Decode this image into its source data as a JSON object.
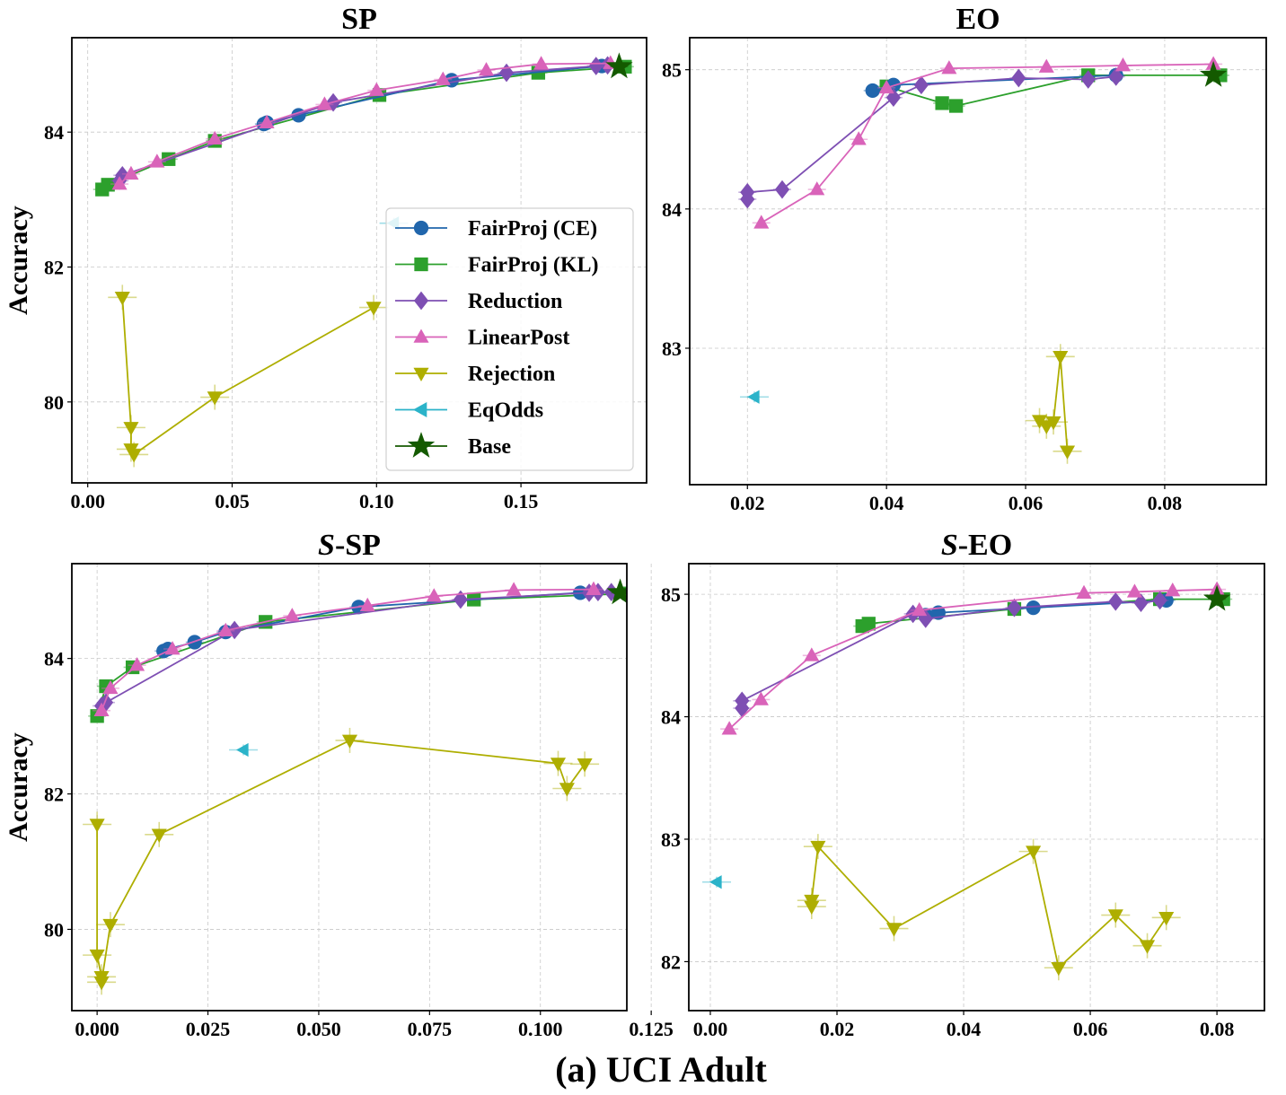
{
  "caption": "(a) UCI Adult",
  "legend": {
    "placement": "inside SP panel, lower-right",
    "entries": [
      {
        "key": "ce",
        "label": "FairProj (CE)"
      },
      {
        "key": "kl",
        "label": "FairProj (KL)"
      },
      {
        "key": "red",
        "label": "Reduction"
      },
      {
        "key": "lp",
        "label": "LinearPost"
      },
      {
        "key": "rej",
        "label": "Rejection"
      },
      {
        "key": "eq",
        "label": "EqOdds"
      },
      {
        "key": "base",
        "label": "Base"
      }
    ]
  },
  "styles": {
    "ce": {
      "color": "#2166ac",
      "marker": "circle"
    },
    "kl": {
      "color": "#2ca02c",
      "marker": "square"
    },
    "red": {
      "color": "#7e4fb3",
      "marker": "diamond"
    },
    "lp": {
      "color": "#d963b9",
      "marker": "triangle-up"
    },
    "rej": {
      "color": "#aeae00",
      "marker": "triangle-down"
    },
    "eq": {
      "color": "#2bb3c9",
      "marker": "triangle-left"
    },
    "base": {
      "color": "#145a00",
      "marker": "star"
    }
  },
  "chart_data": [
    {
      "type": "line",
      "title": "SP",
      "title_italic_prefix": "",
      "xlabel": "",
      "ylabel": "Accuracy",
      "xlim": [
        -0.0055,
        0.1935
      ],
      "ylim": [
        78.8,
        85.4
      ],
      "xticks": [
        0.0,
        0.05,
        0.1,
        0.15
      ],
      "xtick_labels": [
        "0.00",
        "0.05",
        "0.10",
        "0.15"
      ],
      "yticks": [
        80,
        82,
        84
      ],
      "ytick_labels": [
        "80",
        "82",
        "84"
      ],
      "grid": true,
      "series": [
        {
          "key": "ce",
          "x": [
            0.061,
            0.062,
            0.073,
            0.126,
            0.178
          ],
          "y": [
            84.12,
            84.14,
            84.25,
            84.77,
            84.98
          ]
        },
        {
          "key": "kl",
          "x": [
            0.005,
            0.007,
            0.028,
            0.044,
            0.101,
            0.156,
            0.186
          ],
          "y": [
            83.15,
            83.22,
            83.6,
            83.87,
            84.55,
            84.88,
            84.97
          ]
        },
        {
          "key": "red",
          "x": [
            0.011,
            0.012,
            0.085,
            0.145,
            0.176,
            0.18
          ],
          "y": [
            83.28,
            83.36,
            84.44,
            84.88,
            84.98,
            84.99
          ]
        },
        {
          "key": "lp",
          "x": [
            0.011,
            0.015,
            0.024,
            0.044,
            0.062,
            0.082,
            0.1,
            0.123,
            0.138,
            0.157,
            0.181
          ],
          "y": [
            83.23,
            83.38,
            83.56,
            83.9,
            84.14,
            84.41,
            84.62,
            84.78,
            84.92,
            85.01,
            85.02
          ]
        },
        {
          "key": "rej",
          "x": [
            0.012,
            0.015,
            0.015,
            0.016,
            0.044,
            0.099
          ],
          "y": [
            81.55,
            79.62,
            79.3,
            79.22,
            80.07,
            81.4
          ]
        },
        {
          "key": "eq",
          "x": [
            0.106
          ],
          "y": [
            82.65
          ],
          "line": false
        },
        {
          "key": "base",
          "x": [
            0.184
          ],
          "y": [
            84.97
          ],
          "line": false
        }
      ]
    },
    {
      "type": "line",
      "title": "EO",
      "title_italic_prefix": "",
      "xlabel": "",
      "ylabel": "",
      "xlim": [
        0.0117,
        0.0946
      ],
      "ylim": [
        82.02,
        85.23
      ],
      "xticks": [
        0.02,
        0.04,
        0.06,
        0.08
      ],
      "xtick_labels": [
        "0.02",
        "0.04",
        "0.06",
        "0.08"
      ],
      "yticks": [
        83,
        84,
        85
      ],
      "ytick_labels": [
        "83",
        "84",
        "85"
      ],
      "grid": true,
      "series": [
        {
          "key": "ce",
          "x": [
            0.038,
            0.041,
            0.073
          ],
          "y": [
            84.85,
            84.89,
            84.96
          ]
        },
        {
          "key": "kl",
          "x": [
            0.04,
            0.048,
            0.05,
            0.069,
            0.088
          ],
          "y": [
            84.88,
            84.76,
            84.74,
            84.96,
            84.96
          ]
        },
        {
          "key": "red",
          "x": [
            0.02,
            0.02,
            0.025,
            0.041,
            0.045,
            0.059,
            0.069,
            0.073
          ],
          "y": [
            84.07,
            84.12,
            84.14,
            84.8,
            84.89,
            84.94,
            84.93,
            84.95
          ]
        },
        {
          "key": "lp",
          "x": [
            0.022,
            0.03,
            0.036,
            0.04,
            0.049,
            0.063,
            0.074,
            0.087
          ],
          "y": [
            83.9,
            84.14,
            84.5,
            84.87,
            85.01,
            85.02,
            85.03,
            85.04
          ]
        },
        {
          "key": "rej",
          "x": [
            0.062,
            0.063,
            0.064,
            0.065,
            0.066
          ],
          "y": [
            82.48,
            82.44,
            82.47,
            82.94,
            82.26
          ]
        },
        {
          "key": "eq",
          "x": [
            0.021
          ],
          "y": [
            82.65
          ],
          "line": false
        },
        {
          "key": "base",
          "x": [
            0.087
          ],
          "y": [
            84.96
          ],
          "line": false
        }
      ]
    },
    {
      "type": "line",
      "title": "-SP",
      "title_italic_prefix": "S",
      "xlabel": "",
      "ylabel": "Accuracy",
      "xlim": [
        -0.0057,
        0.1195
      ],
      "ylim": [
        78.8,
        85.4
      ],
      "xticks": [
        0.0,
        0.025,
        0.05,
        0.075,
        0.1,
        0.125
      ],
      "xtick_labels": [
        "0.000",
        "0.025",
        "0.050",
        "0.075",
        "0.100",
        "0.125"
      ],
      "yticks": [
        80,
        82,
        84
      ],
      "ytick_labels": [
        "80",
        "82",
        "84"
      ],
      "grid": true,
      "series": [
        {
          "key": "ce",
          "x": [
            0.015,
            0.016,
            0.022,
            0.029,
            0.059,
            0.109
          ],
          "y": [
            84.11,
            84.14,
            84.24,
            84.39,
            84.76,
            84.97
          ]
        },
        {
          "key": "kl",
          "x": [
            0.0,
            0.002,
            0.008,
            0.038,
            0.085,
            0.12
          ],
          "y": [
            83.15,
            83.59,
            83.87,
            84.54,
            84.87,
            84.96
          ]
        },
        {
          "key": "red",
          "x": [
            0.001,
            0.002,
            0.031,
            0.082,
            0.111,
            0.113,
            0.116
          ],
          "y": [
            83.3,
            83.35,
            84.42,
            84.87,
            84.97,
            84.98,
            84.98
          ]
        },
        {
          "key": "lp",
          "x": [
            0.001,
            0.003,
            0.009,
            0.017,
            0.029,
            0.044,
            0.061,
            0.076,
            0.094,
            0.112
          ],
          "y": [
            83.23,
            83.56,
            83.9,
            84.14,
            84.41,
            84.63,
            84.78,
            84.92,
            85.01,
            85.02
          ]
        },
        {
          "key": "rej",
          "x": [
            0.0,
            0.0,
            0.001,
            0.001,
            0.003,
            0.014,
            0.057,
            0.104,
            0.106,
            0.11
          ],
          "y": [
            81.55,
            79.62,
            79.3,
            79.22,
            80.07,
            81.4,
            82.79,
            82.45,
            82.08,
            82.44
          ]
        },
        {
          "key": "eq",
          "x": [
            0.033
          ],
          "y": [
            82.65
          ],
          "line": false
        },
        {
          "key": "base",
          "x": [
            0.118
          ],
          "y": [
            84.97
          ],
          "line": false
        }
      ]
    },
    {
      "type": "line",
      "title": "-EO",
      "title_italic_prefix": "S",
      "xlabel": "",
      "ylabel": "",
      "xlim": [
        -0.0034,
        0.0875
      ],
      "ylim": [
        81.6,
        85.25
      ],
      "xticks": [
        0.0,
        0.02,
        0.04,
        0.06,
        0.08
      ],
      "xtick_labels": [
        "0.00",
        "0.02",
        "0.04",
        "0.06",
        "0.08"
      ],
      "yticks": [
        82,
        83,
        84,
        85
      ],
      "ytick_labels": [
        "82",
        "83",
        "84",
        "85"
      ],
      "grid": true,
      "series": [
        {
          "key": "ce",
          "x": [
            0.034,
            0.036,
            0.051,
            0.072
          ],
          "y": [
            84.83,
            84.85,
            84.89,
            84.95
          ]
        },
        {
          "key": "kl",
          "x": [
            0.024,
            0.025,
            0.048,
            0.071,
            0.081
          ],
          "y": [
            84.74,
            84.76,
            84.88,
            84.96,
            84.96
          ]
        },
        {
          "key": "red",
          "x": [
            0.005,
            0.005,
            0.032,
            0.034,
            0.048,
            0.064,
            0.068,
            0.071
          ],
          "y": [
            84.07,
            84.13,
            84.84,
            84.8,
            84.89,
            84.94,
            84.93,
            84.95
          ]
        },
        {
          "key": "lp",
          "x": [
            0.003,
            0.008,
            0.016,
            0.033,
            0.059,
            0.067,
            0.073,
            0.08
          ],
          "y": [
            83.9,
            84.14,
            84.5,
            84.87,
            85.01,
            85.02,
            85.03,
            85.04
          ]
        },
        {
          "key": "rej",
          "x": [
            0.016,
            0.016,
            0.017,
            0.029,
            0.051,
            0.055,
            0.064,
            0.069,
            0.072
          ],
          "y": [
            82.45,
            82.5,
            82.94,
            82.27,
            82.9,
            81.95,
            82.38,
            82.13,
            82.36
          ]
        },
        {
          "key": "eq",
          "x": [
            0.001
          ],
          "y": [
            82.65
          ],
          "line": false
        },
        {
          "key": "base",
          "x": [
            0.08
          ],
          "y": [
            84.96
          ],
          "line": false
        }
      ]
    }
  ]
}
